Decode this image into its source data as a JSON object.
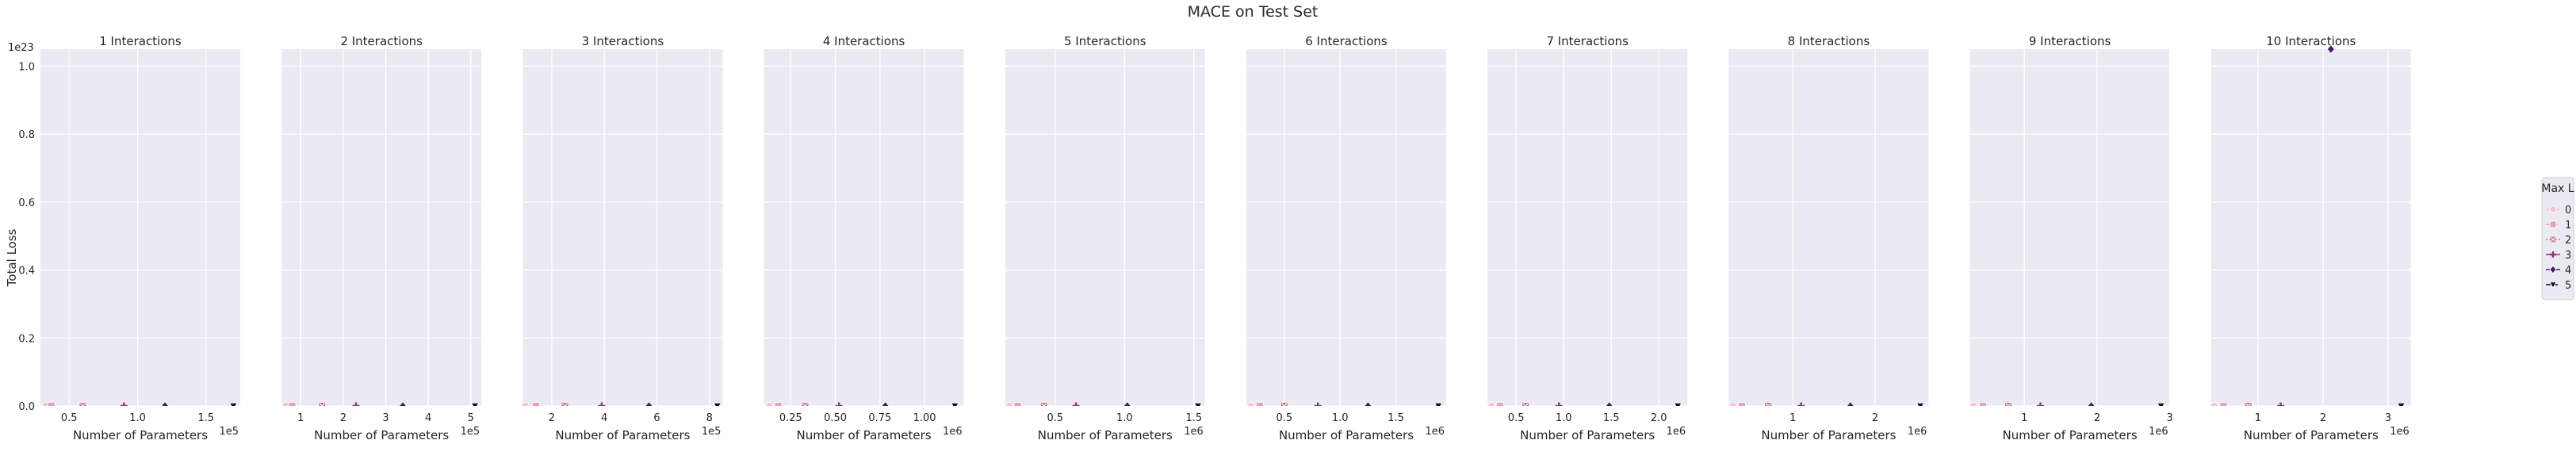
{
  "figure": {
    "title": "MACE on Test Set",
    "ylabel": "Total Loss",
    "y_offset_label": "1e23"
  },
  "legend": {
    "title": "Max L",
    "placement": "right",
    "entries": [
      {
        "label": "0",
        "color": "#f4c4d6",
        "marker": "circle",
        "linestyle": "solid"
      },
      {
        "label": "1",
        "color": "#e7a1ba",
        "marker": "square",
        "linestyle": "dashed"
      },
      {
        "label": "2",
        "color": "#c8788f",
        "marker": "square-x",
        "linestyle": "dotted"
      },
      {
        "label": "3",
        "color": "#8b3a78",
        "marker": "plus",
        "linestyle": "dashdot"
      },
      {
        "label": "4",
        "color": "#4a1d63",
        "marker": "diamond",
        "linestyle": "solid"
      },
      {
        "label": "5",
        "color": "#14092c",
        "marker": "triangle-down",
        "linestyle": "dashed"
      }
    ]
  },
  "chart_data": [
    {
      "type": "line",
      "title": "1 Interactions",
      "xlabel": "Number of Parameters",
      "x_offset_label": "1e5",
      "xlim": [
        0.29,
        1.75
      ],
      "ylim": [
        0,
        1.05
      ],
      "xticks": [
        0.5,
        1.0,
        1.5
      ],
      "xticklabels": [
        "0.5",
        "1.0",
        "1.5"
      ],
      "yticks": [
        0,
        0.2,
        0.4,
        0.6,
        0.8,
        1.0
      ],
      "yticklabels": [
        "0.0",
        "0.2",
        "0.4",
        "0.6",
        "0.8",
        "1.0"
      ],
      "series": [
        {
          "name": "0",
          "x": [
            0.33
          ],
          "y": [
            0
          ]
        },
        {
          "name": "1",
          "x": [
            0.37
          ],
          "y": [
            0
          ]
        },
        {
          "name": "2",
          "x": [
            0.6
          ],
          "y": [
            0
          ]
        },
        {
          "name": "3",
          "x": [
            0.9
          ],
          "y": [
            0
          ]
        },
        {
          "name": "4",
          "x": [
            1.2
          ],
          "y": [
            0
          ]
        },
        {
          "name": "5",
          "x": [
            1.7
          ],
          "y": [
            0
          ]
        }
      ]
    },
    {
      "type": "line",
      "title": "2 Interactions",
      "xlabel": "Number of Parameters",
      "x_offset_label": "1e5",
      "xlim": [
        0.55,
        5.25
      ],
      "ylim": [
        0,
        1.05
      ],
      "xticks": [
        1,
        2,
        3,
        4,
        5
      ],
      "xticklabels": [
        "1",
        "2",
        "3",
        "4",
        "5"
      ],
      "series": [
        {
          "name": "0",
          "x": [
            0.65
          ],
          "y": [
            0
          ]
        },
        {
          "name": "1",
          "x": [
            0.8
          ],
          "y": [
            0
          ]
        },
        {
          "name": "2",
          "x": [
            1.5
          ],
          "y": [
            0
          ]
        },
        {
          "name": "3",
          "x": [
            2.3
          ],
          "y": [
            0
          ]
        },
        {
          "name": "4",
          "x": [
            3.4
          ],
          "y": [
            0
          ]
        },
        {
          "name": "5",
          "x": [
            5.1
          ],
          "y": [
            0
          ]
        }
      ]
    },
    {
      "type": "line",
      "title": "3 Interactions",
      "xlabel": "Number of Parameters",
      "x_offset_label": "1e5",
      "xlim": [
        0.9,
        8.5
      ],
      "ylim": [
        0,
        1.05
      ],
      "xticks": [
        2,
        4,
        6,
        8
      ],
      "xticklabels": [
        "2",
        "4",
        "6",
        "8"
      ],
      "series": [
        {
          "name": "0",
          "x": [
            1.0
          ],
          "y": [
            0
          ]
        },
        {
          "name": "1",
          "x": [
            1.4
          ],
          "y": [
            0
          ]
        },
        {
          "name": "2",
          "x": [
            2.5
          ],
          "y": [
            0
          ]
        },
        {
          "name": "3",
          "x": [
            3.9
          ],
          "y": [
            0
          ]
        },
        {
          "name": "4",
          "x": [
            5.7
          ],
          "y": [
            0
          ]
        },
        {
          "name": "5",
          "x": [
            8.3
          ],
          "y": [
            0
          ]
        }
      ]
    },
    {
      "type": "line",
      "title": "4 Interactions",
      "xlabel": "Number of Parameters",
      "x_offset_label": "1e6",
      "xlim": [
        0.1,
        1.22
      ],
      "ylim": [
        0,
        1.05
      ],
      "xticks": [
        0.25,
        0.5,
        0.75,
        1.0
      ],
      "xticklabels": [
        "0.25",
        "0.50",
        "0.75",
        "1.00"
      ],
      "series": [
        {
          "name": "0",
          "x": [
            0.13
          ],
          "y": [
            0
          ]
        },
        {
          "name": "1",
          "x": [
            0.18
          ],
          "y": [
            0
          ]
        },
        {
          "name": "2",
          "x": [
            0.33
          ],
          "y": [
            0
          ]
        },
        {
          "name": "3",
          "x": [
            0.52
          ],
          "y": [
            0
          ]
        },
        {
          "name": "4",
          "x": [
            0.78
          ],
          "y": [
            0
          ]
        },
        {
          "name": "5",
          "x": [
            1.17
          ],
          "y": [
            0
          ]
        }
      ]
    },
    {
      "type": "line",
      "title": "5 Interactions",
      "xlabel": "Number of Parameters",
      "x_offset_label": "1e6",
      "xlim": [
        0.14,
        1.58
      ],
      "ylim": [
        0,
        1.05
      ],
      "xticks": [
        0.5,
        1.0,
        1.5
      ],
      "xticklabels": [
        "0.5",
        "1.0",
        "1.5"
      ],
      "series": [
        {
          "name": "0",
          "x": [
            0.17
          ],
          "y": [
            0
          ]
        },
        {
          "name": "1",
          "x": [
            0.23
          ],
          "y": [
            0
          ]
        },
        {
          "name": "2",
          "x": [
            0.42
          ],
          "y": [
            0
          ]
        },
        {
          "name": "3",
          "x": [
            0.65
          ],
          "y": [
            0
          ]
        },
        {
          "name": "4",
          "x": [
            1.02
          ],
          "y": [
            0
          ]
        },
        {
          "name": "5",
          "x": [
            1.53
          ],
          "y": [
            0
          ]
        }
      ]
    },
    {
      "type": "line",
      "title": "6 Interactions",
      "xlabel": "Number of Parameters",
      "x_offset_label": "1e6",
      "xlim": [
        0.16,
        1.95
      ],
      "ylim": [
        0,
        1.05
      ],
      "xticks": [
        0.5,
        1.0,
        1.5
      ],
      "xticklabels": [
        "0.5",
        "1.0",
        "1.5"
      ],
      "series": [
        {
          "name": "0",
          "x": [
            0.2
          ],
          "y": [
            0
          ]
        },
        {
          "name": "1",
          "x": [
            0.28
          ],
          "y": [
            0
          ]
        },
        {
          "name": "2",
          "x": [
            0.5
          ],
          "y": [
            0
          ]
        },
        {
          "name": "3",
          "x": [
            0.8
          ],
          "y": [
            0
          ]
        },
        {
          "name": "4",
          "x": [
            1.25
          ],
          "y": [
            0
          ]
        },
        {
          "name": "5",
          "x": [
            1.88
          ],
          "y": [
            0
          ]
        }
      ]
    },
    {
      "type": "line",
      "title": "7 Interactions",
      "xlabel": "Number of Parameters",
      "x_offset_label": "1e6",
      "xlim": [
        0.2,
        2.3
      ],
      "ylim": [
        0,
        1.05
      ],
      "xticks": [
        0.5,
        1.0,
        1.5,
        2.0
      ],
      "xticklabels": [
        "0.5",
        "1.0",
        "1.5",
        "2.0"
      ],
      "series": [
        {
          "name": "0",
          "x": [
            0.24
          ],
          "y": [
            0
          ]
        },
        {
          "name": "1",
          "x": [
            0.33
          ],
          "y": [
            0
          ]
        },
        {
          "name": "2",
          "x": [
            0.6
          ],
          "y": [
            0
          ]
        },
        {
          "name": "3",
          "x": [
            0.95
          ],
          "y": [
            0
          ]
        },
        {
          "name": "4",
          "x": [
            1.48
          ],
          "y": [
            0
          ]
        },
        {
          "name": "5",
          "x": [
            2.2
          ],
          "y": [
            0
          ]
        }
      ]
    },
    {
      "type": "line",
      "title": "8 Interactions",
      "xlabel": "Number of Parameters",
      "x_offset_label": "1e6",
      "xlim": [
        0.22,
        2.65
      ],
      "ylim": [
        0,
        1.05
      ],
      "xticks": [
        1,
        2
      ],
      "xticklabels": [
        "1",
        "2"
      ],
      "series": [
        {
          "name": "0",
          "x": [
            0.27
          ],
          "y": [
            0
          ]
        },
        {
          "name": "1",
          "x": [
            0.38
          ],
          "y": [
            0
          ]
        },
        {
          "name": "2",
          "x": [
            0.7
          ],
          "y": [
            0
          ]
        },
        {
          "name": "3",
          "x": [
            1.1
          ],
          "y": [
            0
          ]
        },
        {
          "name": "4",
          "x": [
            1.7
          ],
          "y": [
            0
          ]
        },
        {
          "name": "5",
          "x": [
            2.55
          ],
          "y": [
            0
          ]
        }
      ]
    },
    {
      "type": "line",
      "title": "9 Interactions",
      "xlabel": "Number of Parameters",
      "x_offset_label": "1e6",
      "xlim": [
        0.25,
        3.0
      ],
      "ylim": [
        0,
        1.05
      ],
      "xticks": [
        1,
        2,
        3
      ],
      "xticklabels": [
        "1",
        "2",
        "3"
      ],
      "series": [
        {
          "name": "0",
          "x": [
            0.3
          ],
          "y": [
            0
          ]
        },
        {
          "name": "1",
          "x": [
            0.43
          ],
          "y": [
            0
          ]
        },
        {
          "name": "2",
          "x": [
            0.78
          ],
          "y": [
            0
          ]
        },
        {
          "name": "3",
          "x": [
            1.22
          ],
          "y": [
            0
          ]
        },
        {
          "name": "4",
          "x": [
            1.92
          ],
          "y": [
            0
          ]
        },
        {
          "name": "5",
          "x": [
            2.88
          ],
          "y": [
            0
          ]
        }
      ]
    },
    {
      "type": "line",
      "title": "10 Interactions",
      "xlabel": "Number of Parameters",
      "x_offset_label": "1e6",
      "xlim": [
        0.28,
        3.35
      ],
      "ylim": [
        0,
        1.05
      ],
      "xticks": [
        1,
        2,
        3
      ],
      "xticklabels": [
        "1",
        "2",
        "3"
      ],
      "series": [
        {
          "name": "0",
          "x": [
            0.33
          ],
          "y": [
            0
          ]
        },
        {
          "name": "1",
          "x": [
            0.47
          ],
          "y": [
            0
          ]
        },
        {
          "name": "2",
          "x": [
            0.85
          ],
          "y": [
            0
          ]
        },
        {
          "name": "3",
          "x": [
            1.35
          ],
          "y": [
            0
          ]
        },
        {
          "name": "4",
          "x": [
            2.12
          ],
          "y": [
            1.05
          ]
        },
        {
          "name": "5",
          "x": [
            3.2
          ],
          "y": [
            0
          ]
        }
      ]
    }
  ]
}
